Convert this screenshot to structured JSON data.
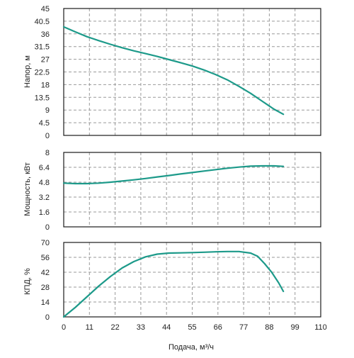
{
  "chart_data": [
    {
      "type": "line",
      "ylabel": "Напор, м",
      "xlim": [
        0,
        110
      ],
      "ylim": [
        0,
        45
      ],
      "yticks": [
        "45",
        "40.5",
        "36",
        "31.5",
        "27",
        "22.5",
        "18",
        "13.5",
        "9",
        "4.5",
        "0"
      ],
      "grid": true,
      "series": [
        {
          "x": [
            0,
            5,
            10,
            15,
            20,
            25,
            30,
            35,
            40,
            45,
            50,
            55,
            60,
            65,
            70,
            75,
            80,
            85,
            90,
            94
          ],
          "y": [
            38.5,
            36.7,
            35.0,
            33.6,
            32.3,
            31.1,
            30.0,
            29.0,
            28.0,
            26.9,
            25.8,
            24.6,
            23.2,
            21.6,
            19.7,
            17.4,
            14.9,
            12.1,
            9.3,
            7.5
          ]
        }
      ]
    },
    {
      "type": "line",
      "ylabel": "Мощность, кВт",
      "xlim": [
        0,
        110
      ],
      "ylim": [
        0,
        8
      ],
      "yticks": [
        "8",
        "6.4",
        "4.8",
        "3.2",
        "1.6",
        "0"
      ],
      "grid": true,
      "series": [
        {
          "x": [
            0,
            5,
            10,
            15,
            20,
            25,
            30,
            35,
            40,
            45,
            50,
            55,
            60,
            65,
            70,
            75,
            80,
            85,
            90,
            94
          ],
          "y": [
            4.7,
            4.65,
            4.65,
            4.7,
            4.8,
            4.92,
            5.05,
            5.2,
            5.36,
            5.52,
            5.68,
            5.84,
            6.0,
            6.15,
            6.3,
            6.42,
            6.52,
            6.55,
            6.55,
            6.5
          ]
        }
      ]
    },
    {
      "type": "line",
      "ylabel": "КПД, %",
      "xlabel": "Подача, м³/ч",
      "xlim": [
        0,
        110
      ],
      "ylim": [
        0,
        70
      ],
      "yticks": [
        "70",
        "56",
        "42",
        "28",
        "14",
        "0"
      ],
      "xticks": [
        "0",
        "11",
        "22",
        "33",
        "44",
        "55",
        "66",
        "77",
        "88",
        "99",
        "110"
      ],
      "grid": true,
      "series": [
        {
          "x": [
            0,
            5,
            10,
            15,
            20,
            25,
            30,
            35,
            40,
            45,
            50,
            55,
            60,
            65,
            70,
            75,
            80,
            83,
            86,
            89,
            92,
            94
          ],
          "y": [
            0,
            9,
            19,
            29,
            38,
            46,
            52,
            56.5,
            59,
            60,
            60.2,
            60.5,
            60.8,
            61.2,
            61.5,
            61.5,
            60,
            57,
            50,
            42,
            32,
            24
          ]
        }
      ]
    }
  ],
  "colors": {
    "line": "#1d9a8a",
    "grid": "#9a9a9a",
    "frame": "#1a1a1a",
    "text": "#222222"
  }
}
